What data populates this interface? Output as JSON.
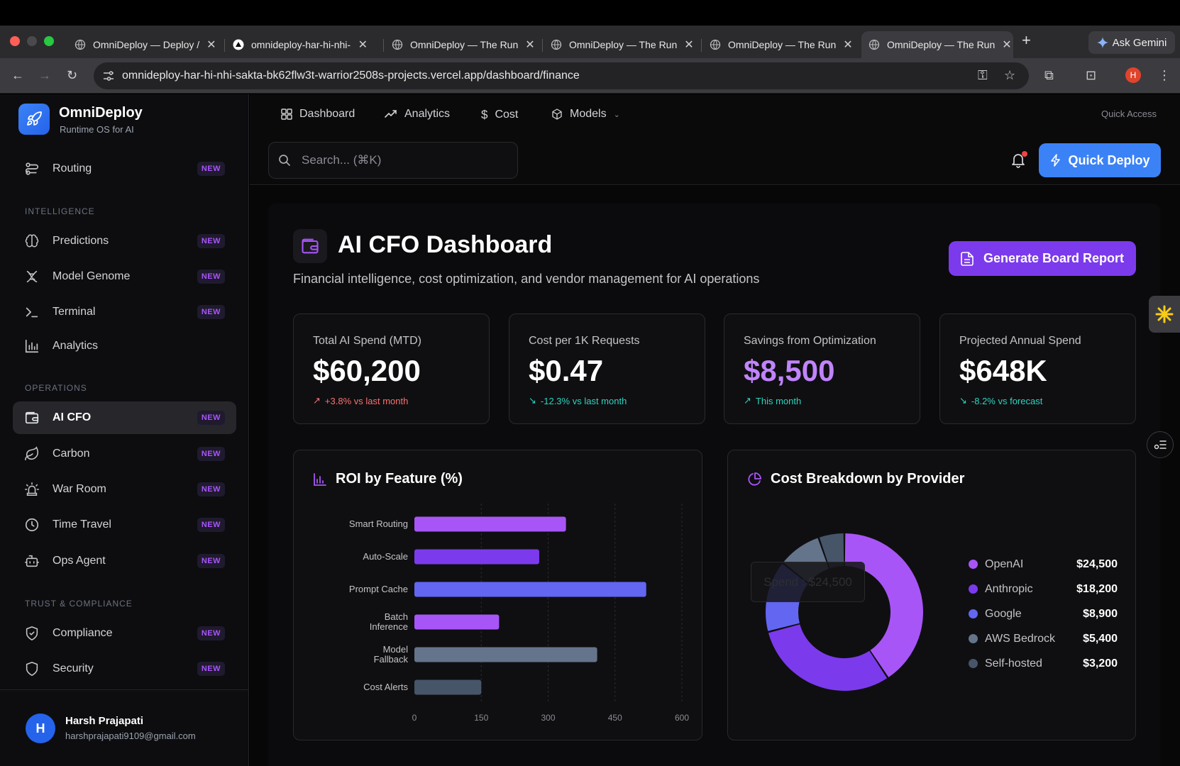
{
  "browser": {
    "tabs": [
      {
        "title": "OmniDeploy — Deploy /"
      },
      {
        "title": "omnideploy-har-hi-nhi-"
      },
      {
        "title": "OmniDeploy — The Run"
      },
      {
        "title": "OmniDeploy — The Run"
      },
      {
        "title": "OmniDeploy — The Run"
      },
      {
        "title": "OmniDeploy — The Run"
      }
    ],
    "new_tab": "+",
    "gemini_label": "Ask Gemini",
    "url": "omnideploy-har-hi-nhi-sakta-bk62flw3t-warrior2508s-projects.vercel.app/dashboard/finance",
    "profile_initial": "H"
  },
  "brand": {
    "name": "OmniDeploy",
    "subtitle": "Runtime OS for AI"
  },
  "sidebar": {
    "routing": {
      "label": "Routing",
      "badge": "NEW"
    },
    "sections": {
      "intelligence": "INTELLIGENCE",
      "operations": "OPERATIONS",
      "trust": "TRUST & COMPLIANCE"
    },
    "items": [
      {
        "label": "Predictions",
        "badge": "NEW"
      },
      {
        "label": "Model Genome",
        "badge": "NEW"
      },
      {
        "label": "Terminal",
        "badge": "NEW"
      },
      {
        "label": "Analytics"
      },
      {
        "label": "AI CFO",
        "badge": "NEW"
      },
      {
        "label": "Carbon",
        "badge": "NEW"
      },
      {
        "label": "War Room",
        "badge": "NEW"
      },
      {
        "label": "Time Travel",
        "badge": "NEW"
      },
      {
        "label": "Ops Agent",
        "badge": "NEW"
      },
      {
        "label": "Compliance",
        "badge": "NEW"
      },
      {
        "label": "Security",
        "badge": "NEW"
      }
    ]
  },
  "user": {
    "initial": "H",
    "name": "Harsh Prajapati",
    "email": "harshprajapati9109@gmail.com"
  },
  "topnav": {
    "dashboard": "Dashboard",
    "analytics": "Analytics",
    "cost": "Cost",
    "models": "Models",
    "quick_access": "Quick Access"
  },
  "search": {
    "placeholder": "Search... (⌘K)"
  },
  "quick_deploy": "Quick Deploy",
  "page": {
    "title": "AI CFO Dashboard",
    "subtitle": "Financial intelligence, cost optimization, and vendor management for AI operations",
    "report_button": "Generate Board Report"
  },
  "kpis": [
    {
      "label": "Total AI Spend (MTD)",
      "value": "$60,200",
      "change": "+3.8% vs last month",
      "arrow": "↗",
      "color": "#f87171"
    },
    {
      "label": "Cost per 1K Requests",
      "value": "$0.47",
      "change": "-12.3% vs last month",
      "arrow": "↘",
      "color": "#2dd4bf"
    },
    {
      "label": "Savings from Optimization",
      "value": "$8,500",
      "change": "This month",
      "arrow": "↗",
      "color": "#2dd4bf"
    },
    {
      "label": "Projected Annual Spend",
      "value": "$648K",
      "change": "-8.2% vs forecast",
      "arrow": "↘",
      "color": "#2dd4bf"
    }
  ],
  "chart_data": [
    {
      "type": "bar",
      "orientation": "horizontal",
      "title": "ROI by Feature (%)",
      "categories": [
        "Smart Routing",
        "Auto-Scale",
        "Prompt Cache",
        "Batch Inference",
        "Model Fallback",
        "Cost Alerts"
      ],
      "values": [
        340,
        280,
        520,
        190,
        410,
        150
      ],
      "colors": [
        "#a855f7",
        "#7c3aed",
        "#6366f1",
        "#a855f7",
        "#64748b",
        "#475569"
      ],
      "xticks": [
        0,
        150,
        300,
        450,
        600
      ],
      "xlim": [
        0,
        600
      ]
    },
    {
      "type": "pie",
      "subtype": "donut",
      "title": "Cost Breakdown by Provider",
      "categories": [
        "OpenAI",
        "Anthropic",
        "Google",
        "AWS Bedrock",
        "Self-hosted"
      ],
      "values": [
        24500,
        18200,
        8900,
        5400,
        3200
      ],
      "labels": [
        "$24,500",
        "$18,200",
        "$8,900",
        "$5,400",
        "$3,200"
      ],
      "colors": [
        "#a855f7",
        "#7c3aed",
        "#6366f1",
        "#64748b",
        "#475569"
      ],
      "tooltip": "Spend : $24,500"
    }
  ]
}
